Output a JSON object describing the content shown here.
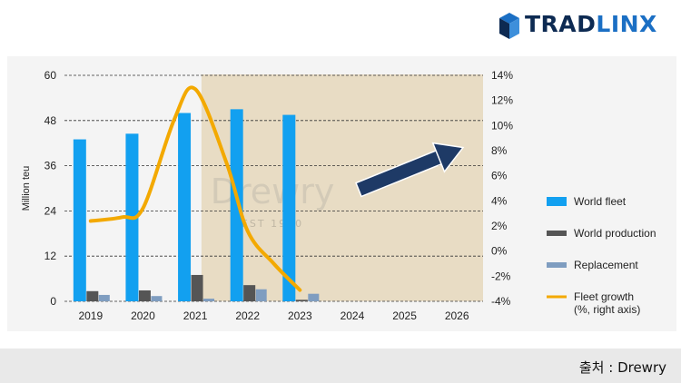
{
  "brand": {
    "logo_prefix": "TRAD",
    "logo_suffix": "LINX",
    "colors": {
      "dark": "#0d2a52",
      "accent": "#1b6fc4"
    },
    "icon": "cube-logo-icon"
  },
  "source": "출처 : Drewry",
  "chart_data": {
    "type": "bar",
    "categories": [
      "2019",
      "2020",
      "2021",
      "2022",
      "2023",
      "2024",
      "2025",
      "2026"
    ],
    "ylabel": "Million teu",
    "ylim": [
      0,
      60
    ],
    "yticks": [
      "0",
      "12",
      "24",
      "36",
      "48",
      "60"
    ],
    "y2lim": [
      -4,
      14
    ],
    "y2ticks": [
      "-4%",
      "-2%",
      "0%",
      "2%",
      "4%",
      "6%",
      "8%",
      "10%",
      "12%",
      "14%"
    ],
    "grid": true,
    "legend_placement": "right",
    "forecast_shading": {
      "from": "2022",
      "to": "2026",
      "color": "#e8dcc4"
    },
    "forecast_arrow": "upward-trend-arrow-icon",
    "watermark": {
      "brand": "Drewry",
      "sub": "EST 1970"
    },
    "series": [
      {
        "name": "World fleet",
        "kind": "bar",
        "color": "#12a0f0",
        "values": [
          43,
          44.5,
          50,
          51,
          49.5,
          null,
          null,
          null
        ]
      },
      {
        "name": "World production",
        "kind": "bar",
        "color": "#555555",
        "values": [
          2.7,
          2.9,
          7,
          4.3,
          0.4,
          null,
          null,
          null
        ]
      },
      {
        "name": "Replacement",
        "kind": "bar",
        "color": "#7f9dc0",
        "values": [
          1.7,
          1.4,
          0.7,
          3.2,
          2.0,
          null,
          null,
          null
        ]
      },
      {
        "name": "Fleet growth\n(%, right axis)",
        "kind": "line",
        "axis": "right",
        "color": "#f3a900",
        "x": [
          2019,
          2019.6,
          2020,
          2020.6,
          2021,
          2021.6,
          2022,
          2022.5,
          2023
        ],
        "values": [
          2.4,
          2.7,
          3.4,
          10.5,
          12.9,
          7.0,
          1.6,
          -1.0,
          -3.1
        ]
      }
    ]
  }
}
